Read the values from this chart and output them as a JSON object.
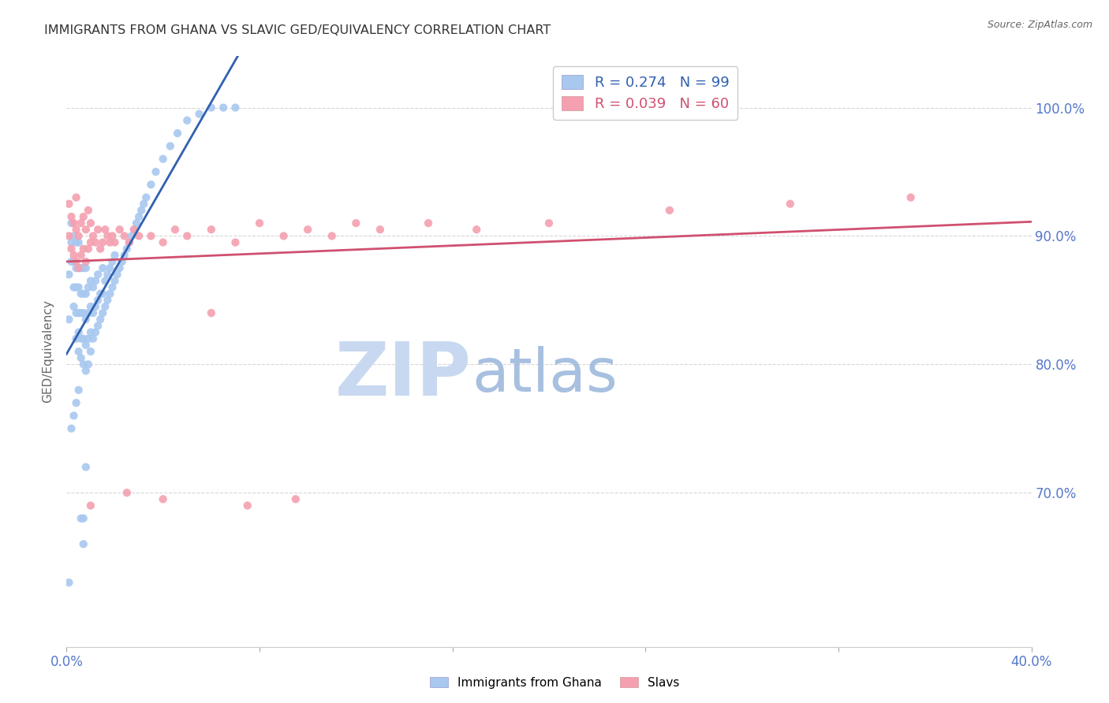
{
  "title": "IMMIGRANTS FROM GHANA VS SLAVIC GED/EQUIVALENCY CORRELATION CHART",
  "source": "Source: ZipAtlas.com",
  "ylabel": "GED/Equivalency",
  "legend_blue_label": "R = 0.274   N = 99",
  "legend_pink_label": "R = 0.039   N = 60",
  "scatter_blue_color": "#A8C8F0",
  "scatter_pink_color": "#F4A0B0",
  "line_blue_color": "#3060B0",
  "line_pink_color": "#D05070",
  "watermark_zip_color": "#C8D8F0",
  "watermark_atlas_color": "#A0B8D8",
  "background_color": "#FFFFFF",
  "grid_color": "#CCCCCC",
  "title_color": "#333333",
  "tick_label_color": "#5577CC",
  "ghana_x": [
    0.001,
    0.001,
    0.002,
    0.002,
    0.002,
    0.003,
    0.003,
    0.003,
    0.003,
    0.004,
    0.004,
    0.004,
    0.004,
    0.004,
    0.005,
    0.005,
    0.005,
    0.005,
    0.005,
    0.005,
    0.006,
    0.006,
    0.006,
    0.006,
    0.006,
    0.007,
    0.007,
    0.007,
    0.007,
    0.007,
    0.008,
    0.008,
    0.008,
    0.008,
    0.008,
    0.009,
    0.009,
    0.009,
    0.009,
    0.01,
    0.01,
    0.01,
    0.01,
    0.011,
    0.011,
    0.011,
    0.012,
    0.012,
    0.012,
    0.013,
    0.013,
    0.013,
    0.014,
    0.014,
    0.015,
    0.015,
    0.015,
    0.016,
    0.016,
    0.017,
    0.017,
    0.018,
    0.018,
    0.019,
    0.019,
    0.02,
    0.02,
    0.021,
    0.022,
    0.023,
    0.024,
    0.025,
    0.026,
    0.027,
    0.028,
    0.029,
    0.03,
    0.031,
    0.032,
    0.033,
    0.035,
    0.037,
    0.04,
    0.043,
    0.046,
    0.05,
    0.055,
    0.06,
    0.065,
    0.07,
    0.002,
    0.003,
    0.004,
    0.005,
    0.001,
    0.006,
    0.007,
    0.007,
    0.008
  ],
  "ghana_y": [
    0.835,
    0.87,
    0.88,
    0.895,
    0.91,
    0.845,
    0.86,
    0.88,
    0.9,
    0.82,
    0.84,
    0.86,
    0.875,
    0.895,
    0.81,
    0.825,
    0.84,
    0.86,
    0.875,
    0.895,
    0.805,
    0.82,
    0.84,
    0.855,
    0.875,
    0.8,
    0.82,
    0.84,
    0.855,
    0.875,
    0.795,
    0.815,
    0.835,
    0.855,
    0.875,
    0.8,
    0.82,
    0.84,
    0.86,
    0.81,
    0.825,
    0.845,
    0.865,
    0.82,
    0.84,
    0.86,
    0.825,
    0.845,
    0.865,
    0.83,
    0.85,
    0.87,
    0.835,
    0.855,
    0.84,
    0.855,
    0.875,
    0.845,
    0.865,
    0.85,
    0.87,
    0.855,
    0.875,
    0.86,
    0.88,
    0.865,
    0.885,
    0.87,
    0.875,
    0.88,
    0.885,
    0.89,
    0.895,
    0.9,
    0.905,
    0.91,
    0.915,
    0.92,
    0.925,
    0.93,
    0.94,
    0.95,
    0.96,
    0.97,
    0.98,
    0.99,
    0.995,
    1.0,
    1.0,
    1.0,
    0.75,
    0.76,
    0.77,
    0.78,
    0.63,
    0.68,
    0.66,
    0.68,
    0.72
  ],
  "slavs_x": [
    0.001,
    0.001,
    0.002,
    0.002,
    0.003,
    0.003,
    0.004,
    0.004,
    0.004,
    0.005,
    0.005,
    0.006,
    0.006,
    0.007,
    0.007,
    0.008,
    0.008,
    0.009,
    0.009,
    0.01,
    0.01,
    0.011,
    0.012,
    0.013,
    0.014,
    0.015,
    0.016,
    0.017,
    0.018,
    0.019,
    0.02,
    0.022,
    0.024,
    0.026,
    0.028,
    0.03,
    0.035,
    0.04,
    0.045,
    0.05,
    0.06,
    0.07,
    0.08,
    0.09,
    0.1,
    0.11,
    0.12,
    0.13,
    0.15,
    0.17,
    0.2,
    0.25,
    0.3,
    0.35,
    0.01,
    0.025,
    0.04,
    0.06,
    0.075,
    0.095
  ],
  "slavs_y": [
    0.9,
    0.925,
    0.89,
    0.915,
    0.885,
    0.91,
    0.88,
    0.905,
    0.93,
    0.875,
    0.9,
    0.885,
    0.91,
    0.89,
    0.915,
    0.88,
    0.905,
    0.89,
    0.92,
    0.895,
    0.91,
    0.9,
    0.895,
    0.905,
    0.89,
    0.895,
    0.905,
    0.9,
    0.895,
    0.9,
    0.895,
    0.905,
    0.9,
    0.895,
    0.905,
    0.9,
    0.9,
    0.895,
    0.905,
    0.9,
    0.905,
    0.895,
    0.91,
    0.9,
    0.905,
    0.9,
    0.91,
    0.905,
    0.91,
    0.905,
    0.91,
    0.92,
    0.925,
    0.93,
    0.69,
    0.7,
    0.695,
    0.84,
    0.69,
    0.695
  ],
  "xmin": 0.0,
  "xmax": 0.4,
  "ymin": 0.58,
  "ymax": 1.04
}
